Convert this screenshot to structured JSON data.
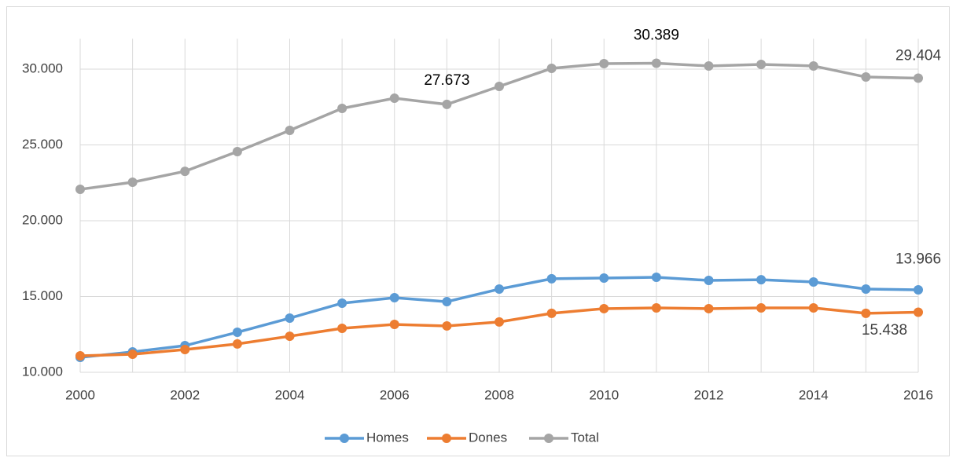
{
  "chart_data": {
    "type": "line",
    "x": [
      2000,
      2001,
      2002,
      2003,
      2004,
      2005,
      2006,
      2007,
      2008,
      2009,
      2010,
      2011,
      2012,
      2013,
      2014,
      2015,
      2016
    ],
    "series": [
      {
        "name": "Homes",
        "color": "#5b9bd5",
        "values": [
          10984,
          11350,
          11760,
          12640,
          13575,
          14560,
          14920,
          14660,
          15490,
          16170,
          16220,
          16270,
          16060,
          16110,
          15960,
          15490,
          15438
        ],
        "value_labels": [
          null,
          null,
          null,
          null,
          null,
          null,
          null,
          null,
          null,
          null,
          null,
          null,
          null,
          null,
          null,
          null,
          "15.438"
        ]
      },
      {
        "name": "Dones",
        "color": "#ed7d31",
        "values": [
          11090,
          11190,
          11500,
          11870,
          12380,
          12900,
          13160,
          13060,
          13320,
          13890,
          14200,
          14250,
          14200,
          14250,
          14250,
          13890,
          13966
        ],
        "value_labels": [
          null,
          null,
          null,
          null,
          null,
          null,
          null,
          null,
          null,
          null,
          null,
          null,
          null,
          null,
          null,
          null,
          "13.966"
        ]
      },
      {
        "name": "Total",
        "color": "#a5a5a5",
        "values": [
          22070,
          22540,
          23260,
          24560,
          25960,
          27410,
          28080,
          27673,
          28860,
          30050,
          30360,
          30389,
          30210,
          30310,
          30210,
          29480,
          29404
        ],
        "value_labels": [
          null,
          null,
          null,
          null,
          null,
          null,
          null,
          "27.673",
          null,
          null,
          null,
          "30.389",
          null,
          null,
          null,
          null,
          "29.404"
        ]
      }
    ],
    "xlim": [
      2000,
      2016
    ],
    "xticks": [
      2000,
      2002,
      2004,
      2006,
      2008,
      2010,
      2012,
      2014,
      2016
    ],
    "ylim": [
      10000,
      32000
    ],
    "yticks": [
      {
        "value": 10000,
        "label": "10.000"
      },
      {
        "value": 15000,
        "label": "15.000"
      },
      {
        "value": 20000,
        "label": "20.000"
      },
      {
        "value": 25000,
        "label": "25.000"
      },
      {
        "value": 30000,
        "label": "30.000"
      }
    ],
    "grid": true,
    "legend": "bottom"
  }
}
